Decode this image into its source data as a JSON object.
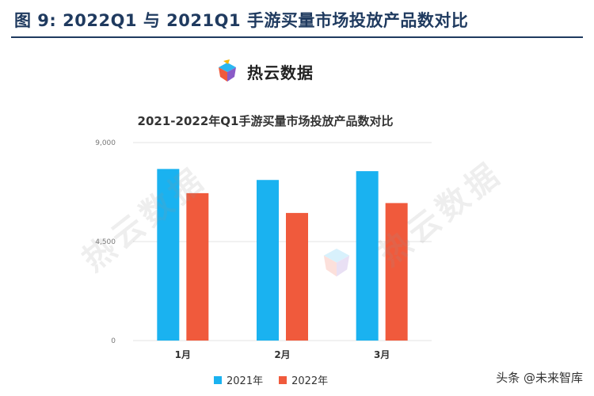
{
  "figure": {
    "title": "图 9:  2022Q1 与 2021Q1 手游买量市场投放产品数对比"
  },
  "brand": {
    "text": "热云数据",
    "logo_icon": "reyun-cube-logo-icon"
  },
  "watermark": {
    "text": "热云数据"
  },
  "source": "头条 @未来智库",
  "colors": {
    "series_2021": "#1AB2F0",
    "series_2022": "#F05A3C",
    "grid": "#e3e3e3",
    "title": "#1f3a5f"
  },
  "chart_data": {
    "type": "bar",
    "title": "2021-2022年Q1手游买量市场投放产品数对比",
    "xlabel": "",
    "ylabel": "",
    "categories": [
      "1月",
      "2月",
      "3月"
    ],
    "series": [
      {
        "name": "2021年",
        "values": [
          7800,
          7300,
          7700
        ]
      },
      {
        "name": "2022年",
        "values": [
          6700,
          5800,
          6250
        ]
      }
    ],
    "ylim": [
      0,
      9000
    ],
    "yticks": [
      0,
      4500,
      9000
    ],
    "ytick_labels": [
      "0",
      "4,500",
      "9,000"
    ],
    "grid": true,
    "legend": "bottom"
  }
}
